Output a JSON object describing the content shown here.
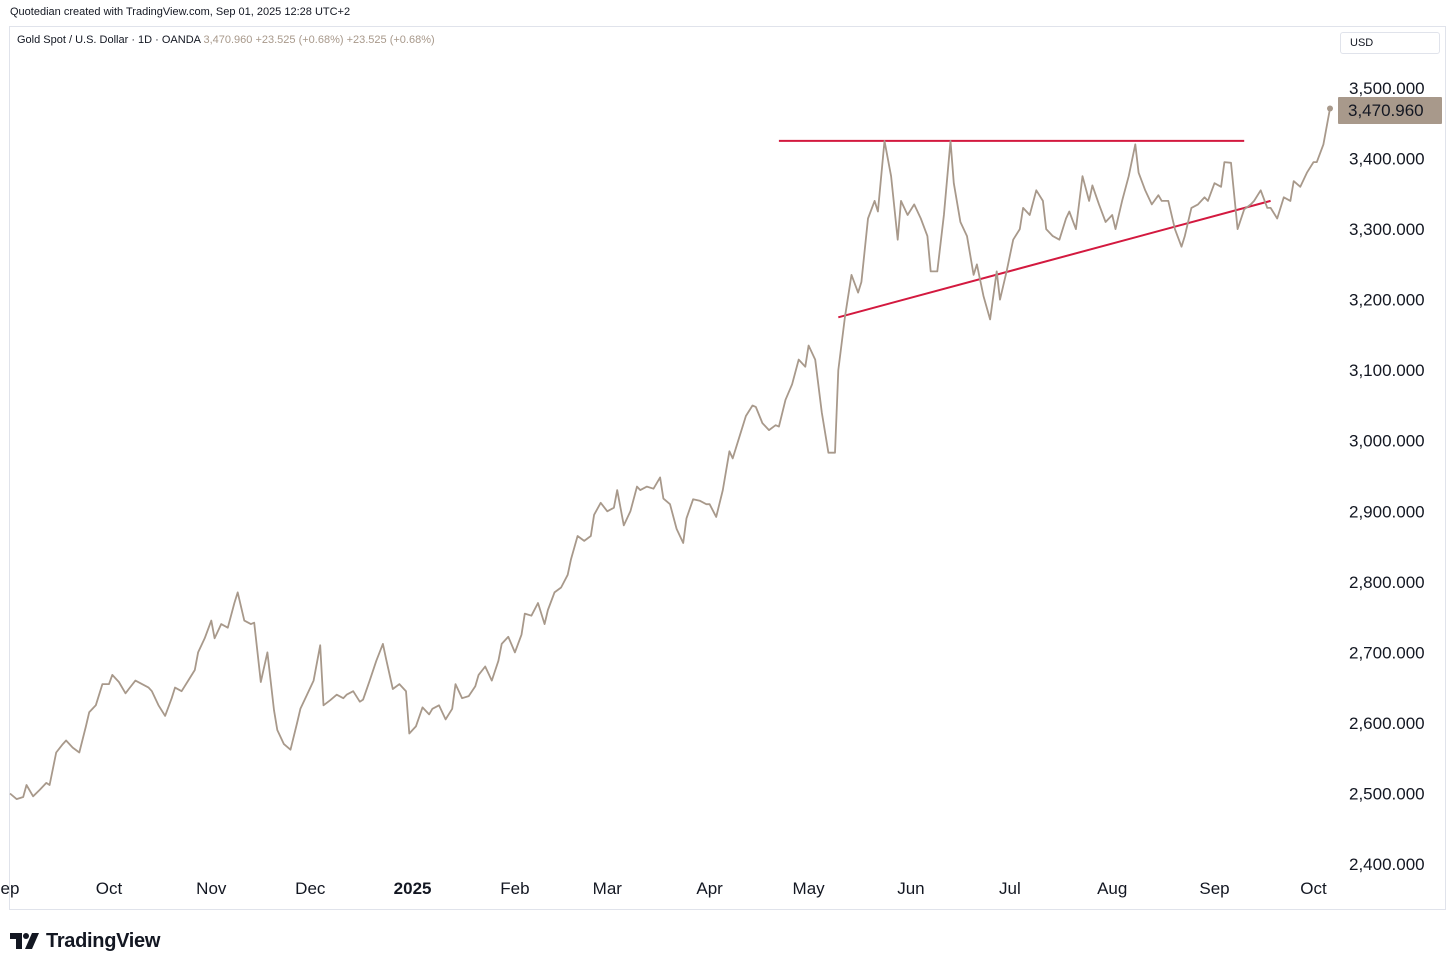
{
  "header": {
    "caption": "Quotedian created with TradingView.com, Sep 01, 2025 12:28 UTC+2"
  },
  "legend": {
    "symbol": "Gold Spot / U.S. Dollar · 1D · OANDA",
    "last": "3,470.960",
    "change1": "+23.525 (+0.68%)",
    "change2": "+23.525 (+0.68%)"
  },
  "currency_button": {
    "label": "USD"
  },
  "price_badge": {
    "label": "3,470.960"
  },
  "brand": {
    "name": "TradingView"
  },
  "colors": {
    "series": "#a8998b",
    "trendline": "#d3193f",
    "badge": "#a8998b"
  },
  "chart_data": {
    "type": "line",
    "title": "",
    "xlabel": "",
    "ylabel": "",
    "ylim": [
      2400,
      3500
    ],
    "x_ticks": [
      {
        "label": "ep",
        "date": "2024-09-01"
      },
      {
        "label": "Oct",
        "date": "2024-10-01"
      },
      {
        "label": "Nov",
        "date": "2024-11-01"
      },
      {
        "label": "Dec",
        "date": "2024-12-01"
      },
      {
        "label": "2025",
        "date": "2025-01-01",
        "bold": true
      },
      {
        "label": "Feb",
        "date": "2025-02-01"
      },
      {
        "label": "Mar",
        "date": "2025-03-01"
      },
      {
        "label": "Apr",
        "date": "2025-04-01"
      },
      {
        "label": "May",
        "date": "2025-05-01"
      },
      {
        "label": "Jun",
        "date": "2025-06-01"
      },
      {
        "label": "Jul",
        "date": "2025-07-01"
      },
      {
        "label": "Aug",
        "date": "2025-08-01"
      },
      {
        "label": "Sep",
        "date": "2025-09-01"
      },
      {
        "label": "Oct",
        "date": "2025-10-01"
      }
    ],
    "y_ticks": [
      {
        "label": "2,400.000",
        "value": 2400
      },
      {
        "label": "2,500.000",
        "value": 2500
      },
      {
        "label": "2,600.000",
        "value": 2600
      },
      {
        "label": "2,700.000",
        "value": 2700
      },
      {
        "label": "2,800.000",
        "value": 2800
      },
      {
        "label": "2,900.000",
        "value": 2900
      },
      {
        "label": "3,000.000",
        "value": 3000
      },
      {
        "label": "3,100.000",
        "value": 3100
      },
      {
        "label": "3,200.000",
        "value": 3200
      },
      {
        "label": "3,300.000",
        "value": 3300
      },
      {
        "label": "3,400.000",
        "value": 3400
      },
      {
        "label": "3,500.000",
        "value": 3500
      }
    ],
    "last_value": 3470.96,
    "series": [
      {
        "points": [
          [
            "2024-09-01",
            2500
          ],
          [
            "2024-09-03",
            2492
          ],
          [
            "2024-09-05",
            2495
          ],
          [
            "2024-09-06",
            2512
          ],
          [
            "2024-09-08",
            2496
          ],
          [
            "2024-09-10",
            2505
          ],
          [
            "2024-09-12",
            2515
          ],
          [
            "2024-09-13",
            2512
          ],
          [
            "2024-09-15",
            2558
          ],
          [
            "2024-09-17",
            2570
          ],
          [
            "2024-09-18",
            2575
          ],
          [
            "2024-09-20",
            2565
          ],
          [
            "2024-09-22",
            2558
          ],
          [
            "2024-09-24",
            2595
          ],
          [
            "2024-09-25",
            2615
          ],
          [
            "2024-09-27",
            2625
          ],
          [
            "2024-09-29",
            2655
          ],
          [
            "2024-10-01",
            2655
          ],
          [
            "2024-10-02",
            2668
          ],
          [
            "2024-10-04",
            2658
          ],
          [
            "2024-10-06",
            2642
          ],
          [
            "2024-10-07",
            2648
          ],
          [
            "2024-10-09",
            2660
          ],
          [
            "2024-10-11",
            2655
          ],
          [
            "2024-10-13",
            2650
          ],
          [
            "2024-10-14",
            2645
          ],
          [
            "2024-10-16",
            2625
          ],
          [
            "2024-10-18",
            2610
          ],
          [
            "2024-10-20",
            2635
          ],
          [
            "2024-10-21",
            2650
          ],
          [
            "2024-10-23",
            2645
          ],
          [
            "2024-10-25",
            2660
          ],
          [
            "2024-10-27",
            2675
          ],
          [
            "2024-10-28",
            2700
          ],
          [
            "2024-10-30",
            2720
          ],
          [
            "2024-11-01",
            2745
          ],
          [
            "2024-11-02",
            2720
          ],
          [
            "2024-11-04",
            2740
          ],
          [
            "2024-11-06",
            2735
          ],
          [
            "2024-11-08",
            2770
          ],
          [
            "2024-11-09",
            2785
          ],
          [
            "2024-11-11",
            2745
          ],
          [
            "2024-11-13",
            2740
          ],
          [
            "2024-11-14",
            2742
          ],
          [
            "2024-11-16",
            2658
          ],
          [
            "2024-11-18",
            2700
          ],
          [
            "2024-11-20",
            2618
          ],
          [
            "2024-11-21",
            2590
          ],
          [
            "2024-11-23",
            2570
          ],
          [
            "2024-11-25",
            2562
          ],
          [
            "2024-11-27",
            2600
          ],
          [
            "2024-11-28",
            2620
          ],
          [
            "2024-11-30",
            2640
          ],
          [
            "2024-12-02",
            2660
          ],
          [
            "2024-12-04",
            2710
          ],
          [
            "2024-12-05",
            2625
          ],
          [
            "2024-12-07",
            2632
          ],
          [
            "2024-12-09",
            2640
          ],
          [
            "2024-12-11",
            2635
          ],
          [
            "2024-12-12",
            2640
          ],
          [
            "2024-12-14",
            2645
          ],
          [
            "2024-12-16",
            2630
          ],
          [
            "2024-12-17",
            2633
          ],
          [
            "2024-12-19",
            2660
          ],
          [
            "2024-12-21",
            2688
          ],
          [
            "2024-12-23",
            2712
          ],
          [
            "2024-12-24",
            2690
          ],
          [
            "2024-12-26",
            2648
          ],
          [
            "2024-12-28",
            2655
          ],
          [
            "2024-12-30",
            2645
          ],
          [
            "2024-12-31",
            2585
          ],
          [
            "2025-01-02",
            2595
          ],
          [
            "2025-01-04",
            2622
          ],
          [
            "2025-01-06",
            2612
          ],
          [
            "2025-01-07",
            2620
          ],
          [
            "2025-01-09",
            2625
          ],
          [
            "2025-01-11",
            2605
          ],
          [
            "2025-01-13",
            2620
          ],
          [
            "2025-01-14",
            2655
          ],
          [
            "2025-01-16",
            2635
          ],
          [
            "2025-01-18",
            2638
          ],
          [
            "2025-01-20",
            2652
          ],
          [
            "2025-01-21",
            2668
          ],
          [
            "2025-01-23",
            2680
          ],
          [
            "2025-01-25",
            2660
          ],
          [
            "2025-01-27",
            2688
          ],
          [
            "2025-01-28",
            2712
          ],
          [
            "2025-01-30",
            2722
          ],
          [
            "2025-02-01",
            2700
          ],
          [
            "2025-02-03",
            2725
          ],
          [
            "2025-02-04",
            2755
          ],
          [
            "2025-02-06",
            2752
          ],
          [
            "2025-02-08",
            2770
          ],
          [
            "2025-02-10",
            2740
          ],
          [
            "2025-02-11",
            2760
          ],
          [
            "2025-02-13",
            2785
          ],
          [
            "2025-02-15",
            2792
          ],
          [
            "2025-02-17",
            2810
          ],
          [
            "2025-02-18",
            2832
          ],
          [
            "2025-02-20",
            2865
          ],
          [
            "2025-02-22",
            2858
          ],
          [
            "2025-02-24",
            2865
          ],
          [
            "2025-02-25",
            2895
          ],
          [
            "2025-02-27",
            2912
          ],
          [
            "2025-03-01",
            2900
          ],
          [
            "2025-03-03",
            2905
          ],
          [
            "2025-03-04",
            2930
          ],
          [
            "2025-03-06",
            2880
          ],
          [
            "2025-03-08",
            2900
          ],
          [
            "2025-03-10",
            2935
          ],
          [
            "2025-03-11",
            2930
          ],
          [
            "2025-03-13",
            2935
          ],
          [
            "2025-03-15",
            2932
          ],
          [
            "2025-03-17",
            2948
          ],
          [
            "2025-03-18",
            2918
          ],
          [
            "2025-03-20",
            2910
          ],
          [
            "2025-03-22",
            2875
          ],
          [
            "2025-03-24",
            2855
          ],
          [
            "2025-03-25",
            2890
          ],
          [
            "2025-03-27",
            2917
          ],
          [
            "2025-03-29",
            2915
          ],
          [
            "2025-03-31",
            2910
          ],
          [
            "2025-04-01",
            2910
          ],
          [
            "2025-04-03",
            2892
          ],
          [
            "2025-04-05",
            2930
          ],
          [
            "2025-04-07",
            2985
          ],
          [
            "2025-04-08",
            2975
          ],
          [
            "2025-04-10",
            3005
          ],
          [
            "2025-04-12",
            3035
          ],
          [
            "2025-04-14",
            3050
          ],
          [
            "2025-04-15",
            3048
          ],
          [
            "2025-04-17",
            3025
          ],
          [
            "2025-04-19",
            3015
          ],
          [
            "2025-04-21",
            3022
          ],
          [
            "2025-04-22",
            3020
          ],
          [
            "2025-04-24",
            3058
          ],
          [
            "2025-04-26",
            3080
          ],
          [
            "2025-04-28",
            3115
          ],
          [
            "2025-04-30",
            3105
          ],
          [
            "2025-05-01",
            3135
          ],
          [
            "2025-05-03",
            3115
          ],
          [
            "2025-05-05",
            3040
          ],
          [
            "2025-05-07",
            2983
          ],
          [
            "2025-05-09",
            2983
          ],
          [
            "2025-05-10",
            3100
          ],
          [
            "2025-05-12",
            3175
          ],
          [
            "2025-05-14",
            3235
          ],
          [
            "2025-05-16",
            3210
          ],
          [
            "2025-05-17",
            3225
          ],
          [
            "2025-05-19",
            3315
          ],
          [
            "2025-05-21",
            3340
          ],
          [
            "2025-05-22",
            3325
          ],
          [
            "2025-05-24",
            3425
          ],
          [
            "2025-05-26",
            3375
          ],
          [
            "2025-05-28",
            3285
          ],
          [
            "2025-05-29",
            3340
          ],
          [
            "2025-05-31",
            3320
          ],
          [
            "2025-06-02",
            3335
          ],
          [
            "2025-06-04",
            3315
          ],
          [
            "2025-06-06",
            3290
          ],
          [
            "2025-06-07",
            3240
          ],
          [
            "2025-06-09",
            3240
          ],
          [
            "2025-06-11",
            3320
          ],
          [
            "2025-06-13",
            3425
          ],
          [
            "2025-06-14",
            3365
          ],
          [
            "2025-06-16",
            3310
          ],
          [
            "2025-06-18",
            3290
          ],
          [
            "2025-06-20",
            3235
          ],
          [
            "2025-06-21",
            3250
          ],
          [
            "2025-06-23",
            3205
          ],
          [
            "2025-06-25",
            3172
          ],
          [
            "2025-06-27",
            3240
          ],
          [
            "2025-06-28",
            3200
          ],
          [
            "2025-06-30",
            3240
          ],
          [
            "2025-07-02",
            3285
          ],
          [
            "2025-07-04",
            3300
          ],
          [
            "2025-07-05",
            3330
          ],
          [
            "2025-07-07",
            3320
          ],
          [
            "2025-07-09",
            3355
          ],
          [
            "2025-07-11",
            3340
          ],
          [
            "2025-07-12",
            3300
          ],
          [
            "2025-07-14",
            3290
          ],
          [
            "2025-07-16",
            3285
          ],
          [
            "2025-07-18",
            3315
          ],
          [
            "2025-07-19",
            3325
          ],
          [
            "2025-07-21",
            3300
          ],
          [
            "2025-07-23",
            3375
          ],
          [
            "2025-07-25",
            3340
          ],
          [
            "2025-07-26",
            3362
          ],
          [
            "2025-07-28",
            3335
          ],
          [
            "2025-07-30",
            3310
          ],
          [
            "2025-08-01",
            3320
          ],
          [
            "2025-08-02",
            3300
          ],
          [
            "2025-08-04",
            3340
          ],
          [
            "2025-08-06",
            3375
          ],
          [
            "2025-08-08",
            3420
          ],
          [
            "2025-08-09",
            3380
          ],
          [
            "2025-08-11",
            3355
          ],
          [
            "2025-08-13",
            3335
          ],
          [
            "2025-08-15",
            3348
          ],
          [
            "2025-08-16",
            3340
          ],
          [
            "2025-08-18",
            3340
          ],
          [
            "2025-08-20",
            3300
          ],
          [
            "2025-08-22",
            3275
          ],
          [
            "2025-08-23",
            3290
          ],
          [
            "2025-08-25",
            3330
          ],
          [
            "2025-08-27",
            3335
          ],
          [
            "2025-08-29",
            3345
          ],
          [
            "2025-08-30",
            3340
          ],
          [
            "2025-09-01",
            3365
          ],
          [
            "2025-09-03",
            3360
          ],
          [
            "2025-09-04",
            3395
          ],
          [
            "2025-09-06",
            3394
          ],
          [
            "2025-09-08",
            3300
          ],
          [
            "2025-09-10",
            3328
          ],
          [
            "2025-09-12",
            3335
          ],
          [
            "2025-09-13",
            3340
          ],
          [
            "2025-09-15",
            3355
          ],
          [
            "2025-09-17",
            3330
          ],
          [
            "2025-09-18",
            3330
          ],
          [
            "2025-09-20",
            3315
          ],
          [
            "2025-09-22",
            3345
          ],
          [
            "2025-09-24",
            3340
          ],
          [
            "2025-09-25",
            3368
          ],
          [
            "2025-09-27",
            3360
          ],
          [
            "2025-09-29",
            3380
          ],
          [
            "2025-10-01",
            3395
          ],
          [
            "2025-10-02",
            3395
          ],
          [
            "2025-10-04",
            3420
          ],
          [
            "2025-10-06",
            3470.96
          ]
        ]
      }
    ],
    "trendlines": [
      {
        "from": [
          "2025-04-22",
          3425
        ],
        "to": [
          "2025-09-10",
          3425
        ]
      },
      {
        "from": [
          "2025-05-10",
          3175
        ],
        "to": [
          "2025-09-18",
          3340
        ]
      }
    ]
  }
}
